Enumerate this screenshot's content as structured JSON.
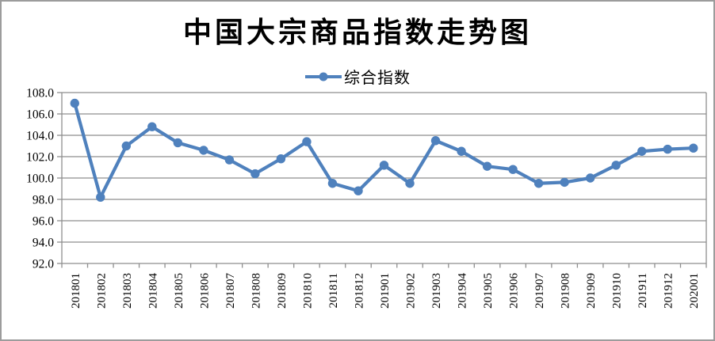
{
  "chart": {
    "title": "中国大宗商品指数走势图",
    "legend": {
      "label": "综合指数"
    }
  },
  "colors": {
    "series_blue": "#4f81bd",
    "gridline_gray": "#8e8e8e",
    "axis_gray": "#8e8e8e",
    "frame_border": "#9c9c9c",
    "text_black": "#000000"
  },
  "chart_data": {
    "type": "line",
    "title": "中国大宗商品指数走势图",
    "categories": [
      "201801",
      "201802",
      "201803",
      "201804",
      "201805",
      "201806",
      "201807",
      "201808",
      "201809",
      "201810",
      "201811",
      "201812",
      "201901",
      "201902",
      "201903",
      "201904",
      "201905",
      "201906",
      "201907",
      "201908",
      "201909",
      "201910",
      "201911",
      "201912",
      "202001"
    ],
    "series": [
      {
        "name": "综合指数",
        "color": "#4f81bd",
        "values": [
          107.0,
          98.2,
          103.0,
          104.8,
          103.3,
          102.6,
          101.7,
          100.4,
          101.8,
          103.4,
          99.5,
          98.8,
          101.2,
          99.5,
          103.5,
          102.5,
          101.1,
          100.8,
          99.5,
          99.6,
          100.0,
          101.2,
          102.5,
          102.7,
          102.8
        ]
      }
    ],
    "xlabel": "",
    "ylabel": "",
    "ylim": [
      92.0,
      108.0
    ],
    "ytick_step": 2.0,
    "ytick_labels": [
      "92.0",
      "94.0",
      "96.0",
      "98.0",
      "100.0",
      "102.0",
      "104.0",
      "106.0",
      "108.0"
    ],
    "x_tick_rotation_deg": 90,
    "grid": "horizontal",
    "legend_position": "top-center",
    "marker": "circle"
  }
}
